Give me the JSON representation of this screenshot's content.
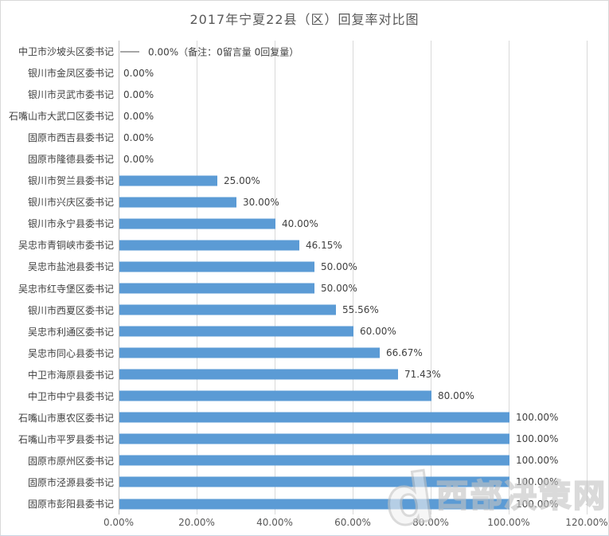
{
  "chart": {
    "title": "2017年宁夏22县（区）回复率对比图"
  },
  "chart_data": {
    "type": "bar",
    "orientation": "horizontal",
    "title": "2017年宁夏22县（区）回复率对比图",
    "categories": [
      "中卫市沙坡头区委书记",
      "银川市金凤区委书记",
      "银川市灵武市委书记",
      "石嘴山市大武口区委书记",
      "固原市西吉县委书记",
      "固原市隆德县委书记",
      "银川市贺兰县委书记",
      "银川市兴庆区委书记",
      "银川市永宁县委书记",
      "吴忠市青铜峡市委书记",
      "吴忠市盐池县委书记",
      "吴忠市红寺堡区委书记",
      "银川市西夏区委书记",
      "吴忠市利通区委书记",
      "吴忠市同心县委书记",
      "中卫市海原县委书记",
      "中卫市中宁县委书记",
      "石嘴山市惠农区委书记",
      "石嘴山市平罗县委书记",
      "固原市原州区委书记",
      "固原市泾源县委书记",
      "固原市彭阳县委书记"
    ],
    "values": [
      0,
      0,
      0,
      0,
      0,
      0,
      25,
      30,
      40,
      46.15,
      50,
      50,
      55.56,
      60,
      66.67,
      71.43,
      80,
      100,
      100,
      100,
      100,
      100
    ],
    "value_labels": [
      "0.00%（备注：0留言量 0回复量）",
      "0.00%",
      "0.00%",
      "0.00%",
      "0.00%",
      "0.00%",
      "25.00%",
      "30.00%",
      "40.00%",
      "46.15%",
      "50.00%",
      "50.00%",
      "55.56%",
      "60.00%",
      "66.67%",
      "71.43%",
      "80.00%",
      "100.00%",
      "100.00%",
      "100.00%",
      "100.00%",
      "100.00%"
    ],
    "note_row_index": 0,
    "xlabel": "",
    "ylabel": "",
    "xlim": [
      0,
      120
    ],
    "x_ticks": [
      "0.00%",
      "20.00%",
      "40.00%",
      "60.00%",
      "80.00%",
      "100.00%",
      "120.00%"
    ],
    "grid": "vertical",
    "legend": "none",
    "bar_color": "#5B9BD5",
    "gridline_color": "#d9d9d9",
    "title_color": "#595959",
    "label_color": "#404040"
  },
  "watermark": {
    "logo_glyph": "d",
    "text": "西部决策网"
  }
}
